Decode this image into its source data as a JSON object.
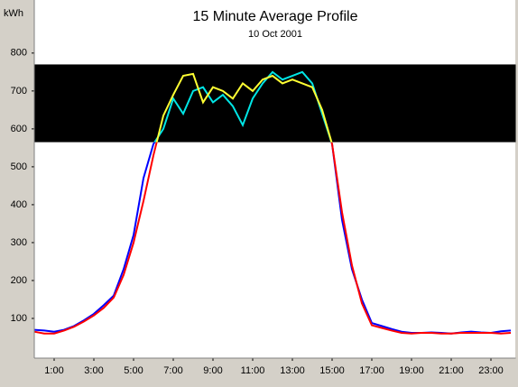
{
  "chart_data": {
    "type": "line",
    "title": "15 Minute Average Profile",
    "subtitle": "10 Oct 2001",
    "y_label": "kWh",
    "x": [
      0,
      0.5,
      1,
      1.5,
      2,
      2.5,
      3,
      3.5,
      4,
      4.5,
      5,
      5.5,
      6,
      6.5,
      7,
      7.5,
      8,
      8.5,
      9,
      9.5,
      10,
      10.5,
      11,
      11.5,
      12,
      12.5,
      13,
      13.5,
      14,
      14.5,
      15,
      15.5,
      16,
      16.5,
      17,
      17.5,
      18,
      18.5,
      19,
      19.5,
      20,
      20.5,
      21,
      21.5,
      22,
      22.5,
      23,
      23.5,
      24
    ],
    "series": [
      {
        "color": "#0000ff",
        "band_color": "#00e5e5",
        "values": [
          70,
          68,
          65,
          70,
          80,
          95,
          112,
          135,
          160,
          230,
          320,
          470,
          560,
          600,
          680,
          640,
          700,
          710,
          670,
          690,
          660,
          610,
          680,
          720,
          750,
          730,
          740,
          750,
          720,
          640,
          560,
          360,
          230,
          150,
          88,
          80,
          72,
          65,
          62,
          62,
          63,
          62,
          60,
          63,
          65,
          63,
          62,
          66,
          68
        ]
      },
      {
        "color": "#ff0000",
        "band_color": "#ffff33",
        "values": [
          65,
          60,
          60,
          68,
          78,
          92,
          108,
          128,
          155,
          215,
          300,
          410,
          530,
          635,
          690,
          740,
          745,
          670,
          710,
          700,
          680,
          720,
          700,
          730,
          740,
          720,
          730,
          720,
          710,
          650,
          560,
          380,
          240,
          140,
          82,
          75,
          68,
          62,
          60,
          62,
          62,
          60,
          60,
          62,
          62,
          62,
          62,
          60,
          62
        ]
      }
    ],
    "band": [
      565,
      770
    ],
    "band_fill": "#000000",
    "xlim": [
      0,
      24.25
    ],
    "xticks": [
      {
        "value": 1,
        "label": "1:00"
      },
      {
        "value": 3,
        "label": "3:00"
      },
      {
        "value": 5,
        "label": "5:00"
      },
      {
        "value": 7,
        "label": "7:00"
      },
      {
        "value": 9,
        "label": "9:00"
      },
      {
        "value": 11,
        "label": "11:00"
      },
      {
        "value": 13,
        "label": "13:00"
      },
      {
        "value": 15,
        "label": "15:00"
      },
      {
        "value": 17,
        "label": "17:00"
      },
      {
        "value": 19,
        "label": "19:00"
      },
      {
        "value": 21,
        "label": "21:00"
      },
      {
        "value": 23,
        "label": "23:00"
      }
    ],
    "ylim": [
      0,
      940
    ],
    "yticks": [
      100,
      200,
      300,
      400,
      500,
      600,
      700,
      800
    ]
  }
}
